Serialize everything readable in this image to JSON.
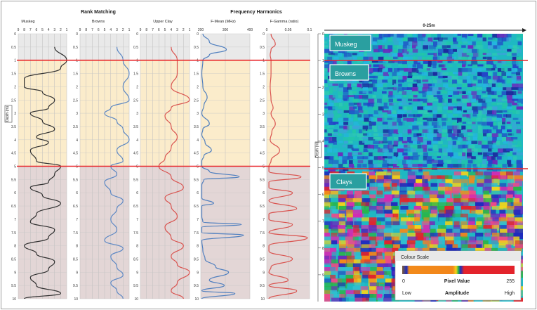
{
  "group_titles": {
    "rank": "Rank Matching",
    "freq": "Frequency Harmonics"
  },
  "depth_axis_label": "Depth (m)",
  "depth_ticks": [
    "0",
    "0.5",
    "1",
    "1.5",
    "2",
    "2.5",
    "3",
    "3.5",
    "4",
    "4.5",
    "5",
    "5.5",
    "6",
    "6.5",
    "7",
    "7.5",
    "8",
    "8.5",
    "9",
    "9.5",
    "10"
  ],
  "zones": {
    "boundaries": [
      1,
      5
    ],
    "colors": {
      "top": "#e9e9e9",
      "middle": "#fbeccb",
      "bottom": "#e3d6d6",
      "line": "#e8262a"
    }
  },
  "chart_data": [
    {
      "type": "line",
      "title": "Muskeg",
      "ticks": [
        "9",
        "8",
        "7",
        "6",
        "5",
        "4",
        "3",
        "2",
        "1"
      ],
      "xlim": [
        9,
        1
      ],
      "ylim": [
        0,
        10
      ],
      "color": "#2f2f2f",
      "depth": [
        0.5,
        1.0,
        1.3,
        1.7,
        2.0,
        2.2,
        2.5,
        2.8,
        3.0,
        3.3,
        3.6,
        3.9,
        4.1,
        4.4,
        4.8,
        5.0,
        5.3,
        5.6,
        5.8,
        6.1,
        6.4,
        6.8,
        7.1,
        7.4,
        7.7,
        8.0,
        8.3,
        8.6,
        8.9,
        9.2,
        9.5,
        9.8,
        10.0
      ],
      "values": [
        3,
        1,
        2,
        8,
        8,
        5,
        3,
        4,
        7,
        5,
        3,
        6,
        4,
        7,
        6,
        2,
        3,
        4,
        7,
        5,
        2,
        6,
        7,
        3,
        4,
        8,
        6,
        3,
        4,
        7,
        6,
        2,
        8
      ]
    },
    {
      "type": "line",
      "title": "Browns",
      "ticks": [
        "9",
        "8",
        "7",
        "6",
        "5",
        "4",
        "3",
        "2",
        "1"
      ],
      "xlim": [
        9,
        1
      ],
      "ylim": [
        0,
        10
      ],
      "color": "#5b87c4",
      "depth": [
        0.5,
        1.0,
        1.5,
        2.0,
        2.5,
        2.8,
        3.0,
        3.3,
        3.6,
        4.0,
        4.4,
        4.8,
        5.0,
        5.3,
        5.6,
        6.0,
        6.3,
        6.6,
        7.0,
        7.4,
        7.8,
        8.1,
        8.4,
        8.8,
        9.1,
        9.4,
        9.7,
        10.0
      ],
      "values": [
        3,
        2,
        1,
        2,
        1,
        4,
        5,
        3,
        2,
        1,
        3,
        2,
        4,
        3,
        5,
        4,
        2,
        3,
        4,
        3,
        5,
        2,
        4,
        3,
        2,
        4,
        3,
        2
      ]
    },
    {
      "type": "line",
      "title": "Upper Clay",
      "ticks": [
        "9",
        "8",
        "7",
        "6",
        "5",
        "4",
        "3",
        "2",
        "1"
      ],
      "xlim": [
        9,
        1
      ],
      "ylim": [
        0,
        10
      ],
      "color": "#d9534f",
      "depth": [
        0.5,
        1.0,
        1.5,
        2.0,
        2.5,
        2.8,
        3.1,
        3.5,
        3.9,
        4.3,
        4.7,
        5.0,
        5.4,
        5.8,
        6.2,
        6.5,
        6.9,
        7.3,
        7.7,
        8.0,
        8.4,
        8.7,
        9.0,
        9.4,
        9.7,
        10.0
      ],
      "values": [
        4,
        3,
        3,
        4,
        1,
        4,
        5,
        4,
        3,
        4,
        5,
        6,
        4,
        2,
        5,
        4,
        3,
        5,
        4,
        2,
        4,
        3,
        1,
        3,
        4,
        2
      ]
    },
    {
      "type": "line",
      "title": "F-Mean (MHz)",
      "ticks": [
        "200",
        "300",
        "400"
      ],
      "xlim": [
        200,
        430
      ],
      "ylim": [
        0,
        10
      ],
      "color": "#4f7fbf",
      "depth": [
        0.0,
        0.3,
        0.6,
        0.8,
        1.0,
        1.5,
        2.0,
        2.4,
        2.7,
        3.0,
        3.4,
        3.6,
        3.8,
        4.1,
        4.4,
        4.6,
        4.8,
        5.0,
        5.2,
        5.4,
        5.5,
        5.7,
        5.9,
        6.2,
        6.4,
        6.5,
        6.6,
        6.9,
        7.1,
        7.2,
        7.3,
        7.5,
        7.6,
        7.8,
        8.2,
        8.5,
        8.8,
        9.0,
        9.3,
        9.5,
        9.7,
        9.8,
        10.0
      ],
      "values": [
        210,
        240,
        320,
        240,
        210,
        205,
        210,
        230,
        215,
        205,
        240,
        210,
        205,
        220,
        250,
        215,
        205,
        205,
        240,
        380,
        215,
        205,
        205,
        205,
        260,
        205,
        205,
        205,
        210,
        390,
        205,
        205,
        400,
        205,
        210,
        220,
        270,
        330,
        240,
        310,
        205,
        360,
        205
      ]
    },
    {
      "type": "line",
      "title": "F-Gamma (ratio)",
      "ticks": [
        "0",
        "0.05",
        "0.1"
      ],
      "xlim": [
        0,
        0.1
      ],
      "ylim": [
        0,
        10
      ],
      "color": "#d9534f",
      "depth": [
        0.0,
        0.4,
        0.6,
        0.8,
        1.0,
        1.5,
        2.0,
        2.5,
        2.8,
        3.0,
        3.4,
        3.7,
        4.0,
        4.4,
        4.8,
        5.0,
        5.2,
        5.4,
        5.6,
        5.8,
        6.0,
        6.3,
        6.6,
        6.8,
        7.0,
        7.2,
        7.5,
        7.7,
        8.0,
        8.2,
        8.5,
        8.8,
        9.0,
        9.3,
        9.5,
        9.7,
        10.0
      ],
      "values": [
        0.01,
        0.02,
        0.01,
        0.008,
        0.01,
        0.01,
        0.008,
        0.01,
        0.015,
        0.01,
        0.02,
        0.012,
        0.008,
        0.03,
        0.01,
        0.005,
        0.005,
        0.08,
        0.005,
        0.005,
        0.06,
        0.005,
        0.07,
        0.005,
        0.005,
        0.06,
        0.005,
        0.095,
        0.005,
        0.005,
        0.06,
        0.01,
        0.005,
        0.05,
        0.005,
        0.07,
        0.005
      ]
    }
  ],
  "radargram": {
    "scale_label": "0-25m",
    "depth_ticks": [
      "0",
      "1",
      "2",
      "3",
      "4",
      "5",
      "6",
      "7",
      "8",
      "9"
    ],
    "depth_axis_label": "Depth (m)",
    "zone_labels": [
      "Muskeg",
      "Browns",
      "Clays"
    ],
    "legend": {
      "title": "Colour Scale",
      "min": "0",
      "max": "255",
      "pixel_label": "Pixel Value",
      "low": "Low",
      "high": "High",
      "amplitude_label": "Amplitude"
    }
  }
}
